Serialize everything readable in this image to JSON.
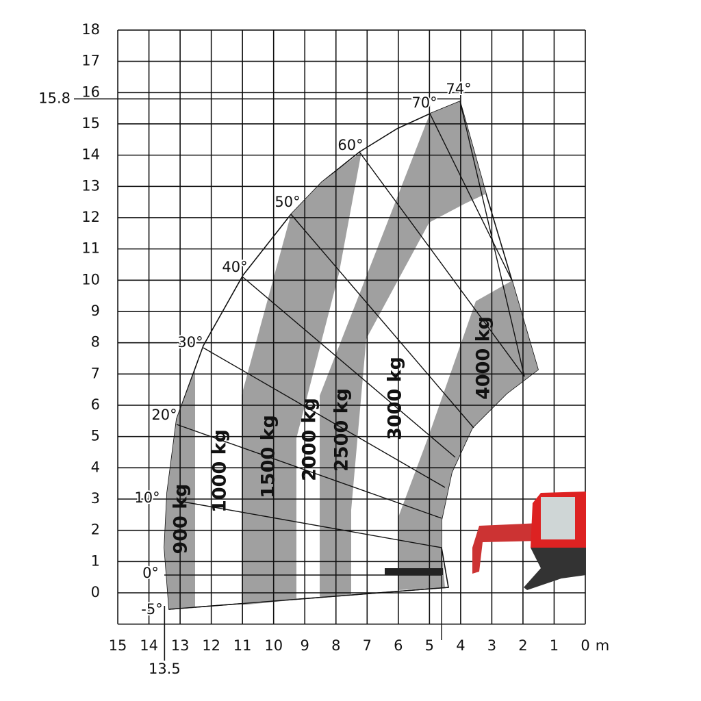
{
  "axes": {
    "x_ticks": [
      15,
      14,
      13,
      12,
      11,
      10,
      9,
      8,
      7,
      6,
      5,
      4,
      3,
      2,
      1,
      0
    ],
    "x_unit": "m",
    "y_ticks": [
      0,
      1,
      2,
      3,
      4,
      5,
      6,
      7,
      8,
      9,
      10,
      11,
      12,
      13,
      14,
      15,
      16,
      17,
      18
    ]
  },
  "markers": {
    "max_height": 15.8,
    "max_reach": 13.5
  },
  "angles": [
    "74°",
    "70°",
    "60°",
    "50°",
    "40°",
    "30°",
    "20°",
    "10°",
    "0°",
    "-5°"
  ],
  "zones": [
    "900 kg",
    "1000 kg",
    "1500 kg",
    "2000 kg",
    "2500 kg",
    "3000 kg",
    "4000 kg"
  ]
}
